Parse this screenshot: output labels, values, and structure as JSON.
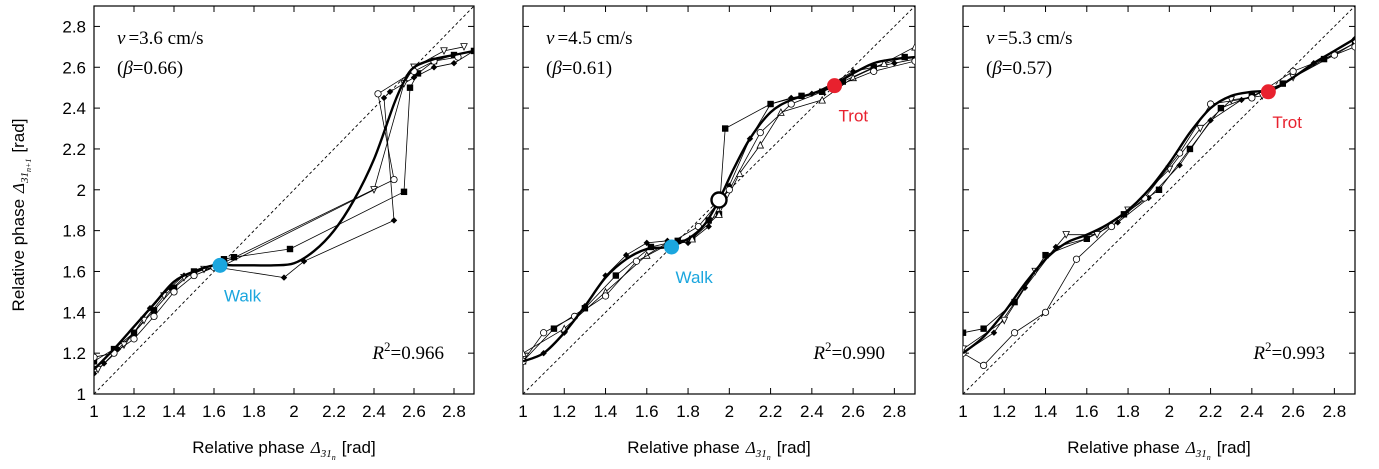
{
  "figure": {
    "ylabel": "Relative phase",
    "ylabel_symbol": "Δ",
    "ylabel_sub": "31",
    "ylabel_subsub": "n+1",
    "ylabel_unit": "[rad]",
    "xlabel": "Relative phase",
    "xlabel_symbol": "Δ",
    "xlabel_sub": "31",
    "xlabel_subsub": "n",
    "xlabel_unit": "[rad]"
  },
  "chart_data": [
    {
      "type": "line",
      "xlim": [
        1,
        2.9
      ],
      "ylim": [
        1,
        2.9
      ],
      "x_ticks": [
        "1",
        "1.2",
        "1.4",
        "1.6",
        "1.8",
        "2",
        "2.2",
        "2.4",
        "2.6",
        "2.8"
      ],
      "y_ticks": [
        "1",
        "1.2",
        "1.4",
        "1.6",
        "1.8",
        "2",
        "2.2",
        "2.4",
        "2.6",
        "2.8"
      ],
      "y_tick_labels_shown": true,
      "velocity_symbol": "v",
      "velocity_value": "=3.6 cm/s",
      "beta_open": "(",
      "beta_symbol": "β",
      "beta_value": "=0.66)",
      "r2_symbol": "R",
      "r2_exp": "2",
      "r2_value": "=0.966",
      "identity_line": true,
      "fit_curve": {
        "x": [
          1.0,
          1.1,
          1.2,
          1.3,
          1.4,
          1.5,
          1.6,
          1.7,
          1.8,
          1.9,
          2.0,
          2.1,
          2.2,
          2.3,
          2.4,
          2.5,
          2.55,
          2.6,
          2.7,
          2.8,
          2.9
        ],
        "y": [
          1.12,
          1.22,
          1.33,
          1.44,
          1.55,
          1.6,
          1.63,
          1.63,
          1.63,
          1.63,
          1.64,
          1.7,
          1.8,
          1.95,
          2.15,
          2.42,
          2.53,
          2.6,
          2.64,
          2.66,
          2.68
        ]
      },
      "series": [
        {
          "marker": "diamond",
          "x": [
            1.0,
            1.05,
            1.12,
            1.2,
            1.28,
            1.38,
            1.45,
            1.55,
            1.62,
            1.95,
            2.05,
            2.5,
            2.45,
            2.48,
            2.6,
            2.7,
            2.8,
            2.9
          ],
          "y": [
            1.1,
            1.15,
            1.22,
            1.3,
            1.42,
            1.52,
            1.58,
            1.61,
            1.62,
            1.57,
            1.65,
            1.85,
            2.45,
            2.48,
            2.55,
            2.6,
            2.62,
            2.68
          ]
        },
        {
          "marker": "square",
          "x": [
            1.0,
            1.1,
            1.2,
            1.3,
            1.4,
            1.5,
            1.62,
            1.65,
            1.7,
            1.98,
            2.55,
            2.58,
            2.62,
            2.7,
            2.8,
            2.9
          ],
          "y": [
            1.16,
            1.22,
            1.3,
            1.41,
            1.52,
            1.6,
            1.62,
            1.66,
            1.67,
            1.71,
            1.99,
            2.5,
            2.57,
            2.63,
            2.66,
            2.68
          ]
        },
        {
          "marker": "triangle-down",
          "x": [
            1.02,
            1.15,
            1.25,
            1.35,
            1.45,
            1.55,
            1.65,
            2.4,
            2.55,
            2.6,
            2.75,
            2.85
          ],
          "y": [
            1.12,
            1.24,
            1.36,
            1.48,
            1.57,
            1.61,
            1.63,
            2.0,
            2.52,
            2.6,
            2.68,
            2.7
          ]
        },
        {
          "marker": "circle",
          "x": [
            1.0,
            1.1,
            1.2,
            1.3,
            1.4,
            1.5,
            1.6,
            2.5,
            2.42,
            2.6,
            2.7,
            2.82
          ],
          "y": [
            1.18,
            1.2,
            1.27,
            1.38,
            1.5,
            1.58,
            1.62,
            2.05,
            2.47,
            2.58,
            2.63,
            2.65
          ]
        }
      ],
      "points": [
        {
          "label": "Walk",
          "x": 1.63,
          "y": 1.63,
          "color": "#1BA6DE",
          "label_side": "below"
        }
      ]
    },
    {
      "type": "line",
      "xlim": [
        1,
        2.9
      ],
      "ylim": [
        1,
        2.9
      ],
      "x_ticks": [
        "1",
        "1.2",
        "1.4",
        "1.6",
        "1.8",
        "2",
        "2.2",
        "2.4",
        "2.6",
        "2.8"
      ],
      "y_ticks": [
        "1",
        "1.2",
        "1.4",
        "1.6",
        "1.8",
        "2",
        "2.2",
        "2.4",
        "2.6",
        "2.8"
      ],
      "y_tick_labels_shown": false,
      "velocity_symbol": "v",
      "velocity_value": "=4.5 cm/s",
      "beta_open": "(",
      "beta_symbol": "β",
      "beta_value": "=0.61)",
      "r2_symbol": "R",
      "r2_exp": "2",
      "r2_value": "=0.990",
      "identity_line": true,
      "fit_curve": {
        "x": [
          1.0,
          1.1,
          1.2,
          1.3,
          1.4,
          1.5,
          1.6,
          1.7,
          1.8,
          1.88,
          1.95,
          2.02,
          2.1,
          2.2,
          2.3,
          2.4,
          2.5,
          2.6,
          2.7,
          2.8,
          2.9
        ],
        "y": [
          1.16,
          1.2,
          1.3,
          1.43,
          1.57,
          1.66,
          1.71,
          1.72,
          1.76,
          1.83,
          1.95,
          2.1,
          2.25,
          2.38,
          2.44,
          2.47,
          2.51,
          2.57,
          2.62,
          2.64,
          2.65
        ]
      },
      "series": [
        {
          "marker": "diamond",
          "x": [
            1.0,
            1.1,
            1.2,
            1.3,
            1.4,
            1.5,
            1.6,
            1.7,
            1.8,
            1.9,
            2.0,
            2.1,
            2.2,
            2.3,
            2.4,
            2.5,
            2.6,
            2.7,
            2.8,
            2.9
          ],
          "y": [
            1.16,
            1.2,
            1.3,
            1.43,
            1.58,
            1.68,
            1.74,
            1.75,
            1.74,
            1.82,
            2.02,
            2.25,
            2.42,
            2.45,
            2.47,
            2.52,
            2.58,
            2.6,
            2.62,
            2.64
          ]
        },
        {
          "marker": "square",
          "x": [
            1.0,
            1.15,
            1.3,
            1.45,
            1.62,
            1.75,
            1.82,
            1.9,
            1.95,
            1.98,
            2.2,
            2.35,
            2.45,
            2.55,
            2.7,
            2.85
          ],
          "y": [
            1.16,
            1.32,
            1.42,
            1.58,
            1.72,
            1.75,
            1.76,
            1.85,
            1.88,
            2.3,
            2.42,
            2.46,
            2.48,
            2.53,
            2.6,
            2.65
          ]
        },
        {
          "marker": "triangle",
          "x": [
            1.0,
            1.2,
            1.4,
            1.6,
            1.7,
            1.82,
            1.95,
            2.05,
            2.15,
            2.25,
            2.45,
            2.6,
            2.75,
            2.9
          ],
          "y": [
            1.2,
            1.32,
            1.5,
            1.68,
            1.74,
            1.76,
            1.88,
            2.08,
            2.22,
            2.38,
            2.44,
            2.55,
            2.62,
            2.7
          ]
        },
        {
          "marker": "circle",
          "x": [
            1.0,
            1.1,
            1.25,
            1.4,
            1.55,
            1.7,
            1.85,
            2.0,
            2.15,
            2.3,
            2.5,
            2.7,
            2.9
          ],
          "y": [
            1.16,
            1.3,
            1.38,
            1.48,
            1.65,
            1.73,
            1.82,
            2.0,
            2.28,
            2.42,
            2.5,
            2.58,
            2.63
          ]
        }
      ],
      "points": [
        {
          "label": "Walk",
          "x": 1.72,
          "y": 1.72,
          "color": "#1BA6DE",
          "label_side": "below"
        },
        {
          "label": "",
          "x": 1.95,
          "y": 1.95,
          "color": "#ffffff",
          "label_side": "none",
          "hollow": true
        },
        {
          "label": "Trot",
          "x": 2.51,
          "y": 2.51,
          "color": "#E8212E",
          "label_side": "below"
        }
      ]
    },
    {
      "type": "line",
      "xlim": [
        1,
        2.9
      ],
      "ylim": [
        1,
        2.9
      ],
      "x_ticks": [
        "1",
        "1.2",
        "1.4",
        "1.6",
        "1.8",
        "2",
        "2.2",
        "2.4",
        "2.6",
        "2.8"
      ],
      "y_ticks": [
        "1",
        "1.2",
        "1.4",
        "1.6",
        "1.8",
        "2",
        "2.2",
        "2.4",
        "2.6",
        "2.8"
      ],
      "y_tick_labels_shown": false,
      "velocity_symbol": "v",
      "velocity_value": "=5.3 cm/s",
      "beta_open": "(",
      "beta_symbol": "β",
      "beta_value": "=0.57)",
      "r2_symbol": "R",
      "r2_exp": "2",
      "r2_value": "=0.993",
      "identity_line": true,
      "fit_curve": {
        "x": [
          1.0,
          1.1,
          1.2,
          1.3,
          1.4,
          1.5,
          1.6,
          1.7,
          1.8,
          1.9,
          2.0,
          2.1,
          2.2,
          2.3,
          2.4,
          2.5,
          2.6,
          2.7,
          2.8,
          2.9
        ],
        "y": [
          1.2,
          1.28,
          1.4,
          1.54,
          1.66,
          1.74,
          1.78,
          1.83,
          1.9,
          2.0,
          2.13,
          2.28,
          2.4,
          2.46,
          2.48,
          2.49,
          2.55,
          2.62,
          2.68,
          2.74
        ]
      },
      "series": [
        {
          "marker": "diamond",
          "x": [
            1.0,
            1.15,
            1.3,
            1.45,
            1.6,
            1.75,
            1.9,
            2.05,
            2.2,
            2.35,
            2.55,
            2.7,
            2.9
          ],
          "y": [
            1.2,
            1.3,
            1.52,
            1.72,
            1.76,
            1.84,
            1.96,
            2.12,
            2.34,
            2.44,
            2.52,
            2.62,
            2.74
          ]
        },
        {
          "marker": "square",
          "x": [
            1.0,
            1.1,
            1.25,
            1.4,
            1.6,
            1.78,
            1.95,
            2.1,
            2.25,
            2.4,
            2.55,
            2.75,
            2.9
          ],
          "y": [
            1.3,
            1.32,
            1.45,
            1.68,
            1.76,
            1.88,
            2.0,
            2.2,
            2.4,
            2.46,
            2.52,
            2.64,
            2.72
          ]
        },
        {
          "marker": "triangle-down",
          "x": [
            1.0,
            1.2,
            1.35,
            1.5,
            1.65,
            1.8,
            2.0,
            2.15,
            2.3,
            2.45,
            2.6,
            2.8,
            2.9
          ],
          "y": [
            1.22,
            1.36,
            1.6,
            1.78,
            1.78,
            1.9,
            2.1,
            2.3,
            2.44,
            2.46,
            2.55,
            2.66,
            2.72
          ]
        },
        {
          "marker": "circle",
          "x": [
            1.0,
            1.1,
            1.25,
            1.4,
            1.55,
            1.72,
            1.88,
            2.05,
            2.2,
            2.4,
            2.6,
            2.8,
            2.9
          ],
          "y": [
            1.2,
            1.14,
            1.3,
            1.4,
            1.66,
            1.82,
            1.96,
            2.18,
            2.42,
            2.45,
            2.58,
            2.66,
            2.7
          ]
        }
      ],
      "points": [
        {
          "label": "Trot",
          "x": 2.48,
          "y": 2.48,
          "color": "#E8212E",
          "label_side": "below"
        }
      ]
    }
  ]
}
